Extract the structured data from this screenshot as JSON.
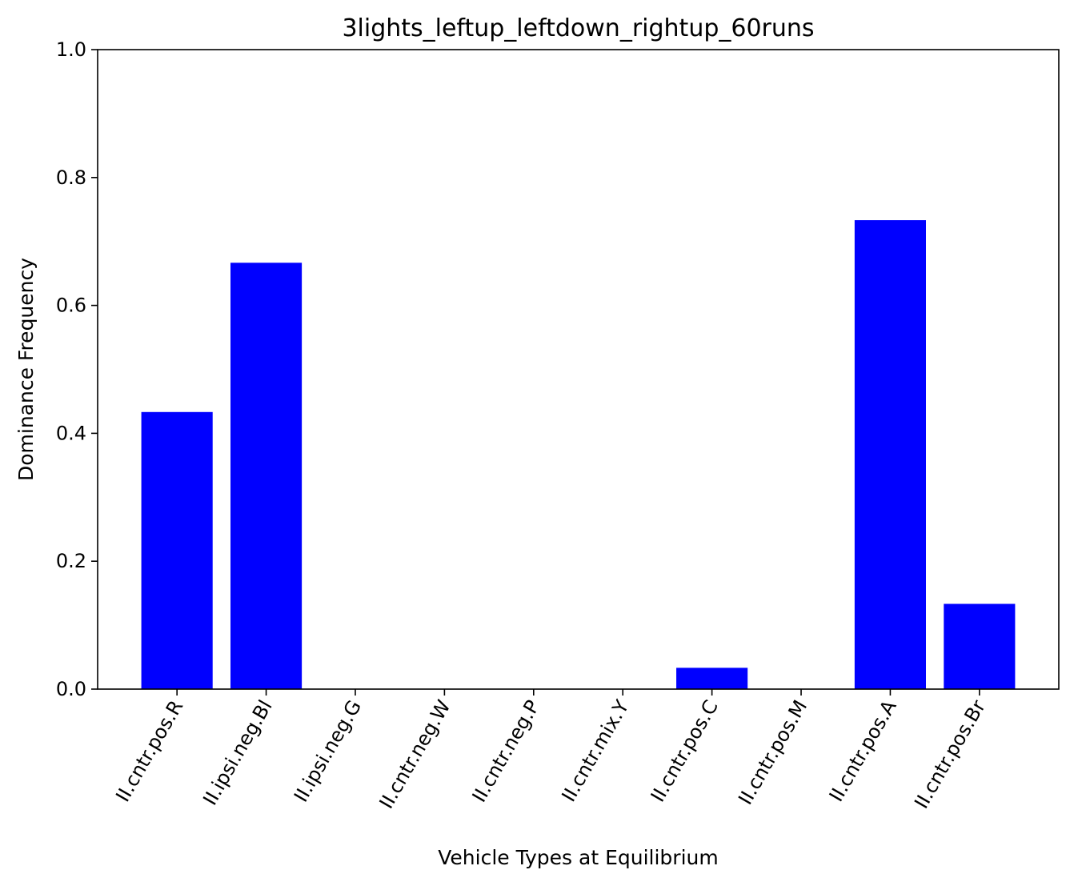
{
  "chart_data": {
    "type": "bar",
    "title": "3lights_leftup_leftdown_rightup_60runs",
    "xlabel": "Vehicle Types at Equilibrium",
    "ylabel": "Dominance Frequency",
    "ylim": [
      0,
      1.0
    ],
    "yticks": [
      "0.0",
      "0.2",
      "0.4",
      "0.6",
      "0.8",
      "1.0"
    ],
    "ytick_values": [
      0,
      0.2,
      0.4,
      0.6,
      0.8,
      1.0
    ],
    "categories": [
      "II.cntr.pos.R",
      "II.ipsi.neg.Bl",
      "II.ipsi.neg.G",
      "II.cntr.neg.W",
      "II.cntr.neg.P",
      "II.cntr.mix.Y",
      "II.cntr.pos.C",
      "II.cntr.pos.M",
      "II.cntr.pos.A",
      "II.cntr.pos.Br"
    ],
    "values": [
      0.4333,
      0.6667,
      0,
      0,
      0,
      0,
      0.0333,
      0,
      0.7333,
      0.1333
    ],
    "bar_color": "#0000ff",
    "grid": false,
    "legend": "none"
  }
}
